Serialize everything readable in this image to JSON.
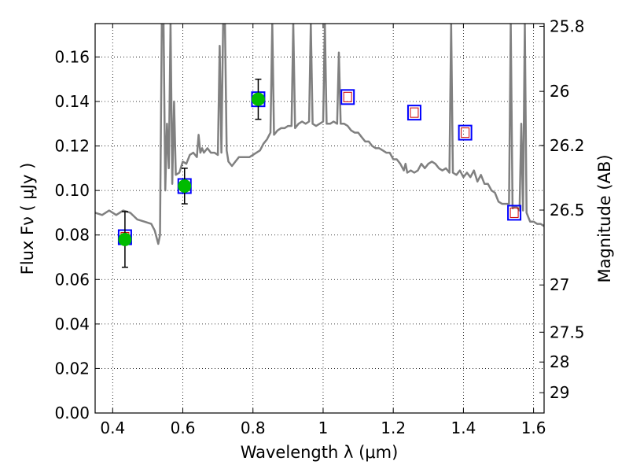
{
  "chart_data": {
    "type": "scatter",
    "xlabel": "Wavelength  λ (μm)",
    "ylabel": "Flux  Fν  ( μJy )",
    "y2label": "Magnitude (AB)",
    "xlim": [
      0.35,
      1.63
    ],
    "ylim": [
      0.0,
      0.175
    ],
    "grid": true,
    "x_ticks": [
      0.4,
      0.6,
      0.8,
      1.0,
      1.2,
      1.4,
      1.6
    ],
    "x_tick_labels": [
      "0.4",
      "0.6",
      "0.8",
      "1",
      "1.2",
      "1.4",
      "1.6"
    ],
    "y_ticks": [
      0.0,
      0.02,
      0.04,
      0.06,
      0.08,
      0.1,
      0.12,
      0.14,
      0.16
    ],
    "y_tick_labels": [
      "0.00",
      "0.02",
      "0.04",
      "0.06",
      "0.08",
      "0.10",
      "0.12",
      "0.14",
      "0.16"
    ],
    "y2_ticks": [
      25.8,
      26,
      26.2,
      26.5,
      27,
      27.5,
      28,
      29
    ],
    "y2_tick_labels": [
      "25.8",
      "26",
      "26.2",
      "26.5",
      "27",
      "27.5",
      "28",
      "29"
    ],
    "colors": {
      "spectrum": "#808080",
      "observed_fill": "#00bb00",
      "model_box": "#0000ff",
      "model_inner": "#cc0000",
      "errorbar": "#000000",
      "grid": "#000000"
    },
    "series": [
      {
        "type": "line",
        "points": [
          [
            0.35,
            0.09
          ],
          [
            0.37,
            0.089
          ],
          [
            0.39,
            0.091
          ],
          [
            0.41,
            0.089
          ],
          [
            0.43,
            0.091
          ],
          [
            0.45,
            0.09
          ],
          [
            0.47,
            0.087
          ],
          [
            0.49,
            0.086
          ],
          [
            0.51,
            0.085
          ],
          [
            0.52,
            0.082
          ],
          [
            0.53,
            0.076
          ],
          [
            0.535,
            0.08
          ],
          [
            0.54,
            0.175
          ],
          [
            0.545,
            0.175
          ],
          [
            0.55,
            0.1
          ],
          [
            0.555,
            0.13
          ],
          [
            0.56,
            0.11
          ],
          [
            0.565,
            0.175
          ],
          [
            0.57,
            0.103
          ],
          [
            0.575,
            0.14
          ],
          [
            0.58,
            0.107
          ],
          [
            0.59,
            0.108
          ],
          [
            0.6,
            0.113
          ],
          [
            0.61,
            0.112
          ],
          [
            0.62,
            0.116
          ],
          [
            0.63,
            0.117
          ],
          [
            0.64,
            0.115
          ],
          [
            0.645,
            0.125
          ],
          [
            0.65,
            0.117
          ],
          [
            0.655,
            0.119
          ],
          [
            0.66,
            0.117
          ],
          [
            0.67,
            0.119
          ],
          [
            0.68,
            0.117
          ],
          [
            0.69,
            0.117
          ],
          [
            0.7,
            0.116
          ],
          [
            0.705,
            0.165
          ],
          [
            0.71,
            0.117
          ],
          [
            0.715,
            0.175
          ],
          [
            0.72,
            0.175
          ],
          [
            0.725,
            0.118
          ],
          [
            0.73,
            0.113
          ],
          [
            0.74,
            0.111
          ],
          [
            0.75,
            0.113
          ],
          [
            0.76,
            0.115
          ],
          [
            0.77,
            0.115
          ],
          [
            0.78,
            0.115
          ],
          [
            0.79,
            0.115
          ],
          [
            0.8,
            0.116
          ],
          [
            0.81,
            0.117
          ],
          [
            0.82,
            0.118
          ],
          [
            0.83,
            0.121
          ],
          [
            0.84,
            0.123
          ],
          [
            0.85,
            0.126
          ],
          [
            0.855,
            0.175
          ],
          [
            0.86,
            0.125
          ],
          [
            0.87,
            0.127
          ],
          [
            0.88,
            0.128
          ],
          [
            0.89,
            0.128
          ],
          [
            0.9,
            0.129
          ],
          [
            0.91,
            0.129
          ],
          [
            0.915,
            0.175
          ],
          [
            0.92,
            0.128
          ],
          [
            0.93,
            0.13
          ],
          [
            0.94,
            0.131
          ],
          [
            0.95,
            0.13
          ],
          [
            0.96,
            0.131
          ],
          [
            0.965,
            0.175
          ],
          [
            0.97,
            0.13
          ],
          [
            0.98,
            0.129
          ],
          [
            0.99,
            0.13
          ],
          [
            1.0,
            0.131
          ],
          [
            1.005,
            0.175
          ],
          [
            1.01,
            0.13
          ],
          [
            1.02,
            0.13
          ],
          [
            1.03,
            0.131
          ],
          [
            1.04,
            0.13
          ],
          [
            1.045,
            0.162
          ],
          [
            1.05,
            0.13
          ],
          [
            1.06,
            0.13
          ],
          [
            1.07,
            0.129
          ],
          [
            1.08,
            0.127
          ],
          [
            1.09,
            0.126
          ],
          [
            1.1,
            0.126
          ],
          [
            1.11,
            0.124
          ],
          [
            1.12,
            0.122
          ],
          [
            1.13,
            0.122
          ],
          [
            1.14,
            0.12
          ],
          [
            1.15,
            0.119
          ],
          [
            1.16,
            0.119
          ],
          [
            1.17,
            0.118
          ],
          [
            1.18,
            0.117
          ],
          [
            1.19,
            0.117
          ],
          [
            1.2,
            0.114
          ],
          [
            1.21,
            0.114
          ],
          [
            1.22,
            0.112
          ],
          [
            1.23,
            0.109
          ],
          [
            1.235,
            0.112
          ],
          [
            1.24,
            0.108
          ],
          [
            1.25,
            0.109
          ],
          [
            1.26,
            0.108
          ],
          [
            1.27,
            0.109
          ],
          [
            1.28,
            0.112
          ],
          [
            1.29,
            0.11
          ],
          [
            1.3,
            0.112
          ],
          [
            1.31,
            0.113
          ],
          [
            1.32,
            0.112
          ],
          [
            1.33,
            0.11
          ],
          [
            1.34,
            0.109
          ],
          [
            1.35,
            0.11
          ],
          [
            1.36,
            0.108
          ],
          [
            1.365,
            0.175
          ],
          [
            1.37,
            0.108
          ],
          [
            1.38,
            0.107
          ],
          [
            1.39,
            0.109
          ],
          [
            1.4,
            0.106
          ],
          [
            1.41,
            0.108
          ],
          [
            1.42,
            0.106
          ],
          [
            1.43,
            0.109
          ],
          [
            1.44,
            0.104
          ],
          [
            1.45,
            0.107
          ],
          [
            1.46,
            0.103
          ],
          [
            1.47,
            0.103
          ],
          [
            1.48,
            0.1
          ],
          [
            1.49,
            0.099
          ],
          [
            1.5,
            0.095
          ],
          [
            1.51,
            0.094
          ],
          [
            1.52,
            0.094
          ],
          [
            1.53,
            0.094
          ],
          [
            1.535,
            0.175
          ],
          [
            1.54,
            0.092
          ],
          [
            1.55,
            0.093
          ],
          [
            1.56,
            0.091
          ],
          [
            1.565,
            0.13
          ],
          [
            1.57,
            0.091
          ],
          [
            1.575,
            0.175
          ],
          [
            1.58,
            0.09
          ],
          [
            1.59,
            0.086
          ],
          [
            1.6,
            0.086
          ],
          [
            1.61,
            0.085
          ],
          [
            1.62,
            0.085
          ],
          [
            1.63,
            0.084
          ]
        ]
      },
      {
        "type": "scatter",
        "marker": "circle",
        "x": [
          0.435,
          0.605,
          0.815
        ],
        "y": [
          0.078,
          0.102,
          0.141
        ],
        "yerr": [
          0.0125,
          0.008,
          0.009
        ]
      },
      {
        "type": "scatter",
        "marker": "square",
        "x": [
          0.435,
          0.605,
          0.815,
          1.07,
          1.26,
          1.405,
          1.545
        ],
        "y": [
          0.079,
          0.102,
          0.141,
          0.142,
          0.135,
          0.126,
          0.09
        ]
      }
    ]
  }
}
